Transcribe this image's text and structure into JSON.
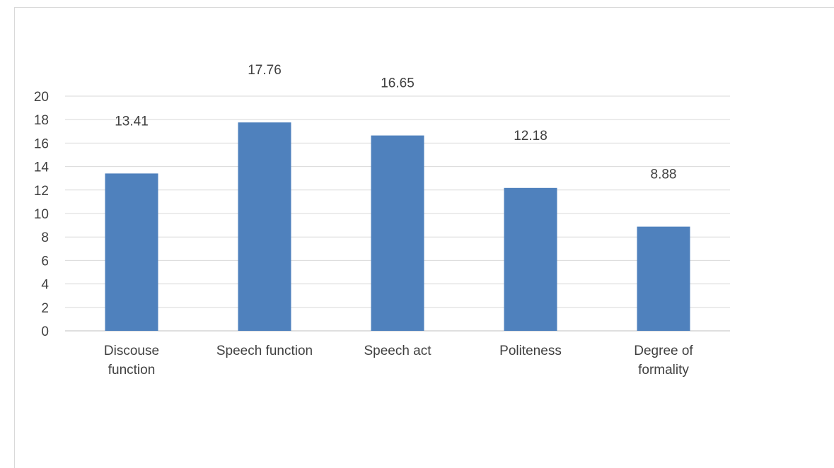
{
  "chart_data": {
    "type": "bar",
    "categories": [
      [
        "Discouse",
        "function"
      ],
      [
        "Speech function"
      ],
      [
        "Speech act"
      ],
      [
        "Politeness"
      ],
      [
        "Degree of",
        "formality"
      ]
    ],
    "values": [
      13.41,
      17.76,
      16.65,
      12.18,
      8.88
    ],
    "data_labels": [
      "13.41",
      "17.76",
      "16.65",
      "12.18",
      "8.88"
    ],
    "yticks": [
      "0",
      "2",
      "4",
      "6",
      "8",
      "10",
      "12",
      "14",
      "16",
      "18",
      "20"
    ],
    "ylim": [
      0,
      20
    ],
    "grid": true,
    "bar_color": "#4f81bd",
    "grid_color": "#d9d9d9",
    "label_color": "#404040"
  }
}
